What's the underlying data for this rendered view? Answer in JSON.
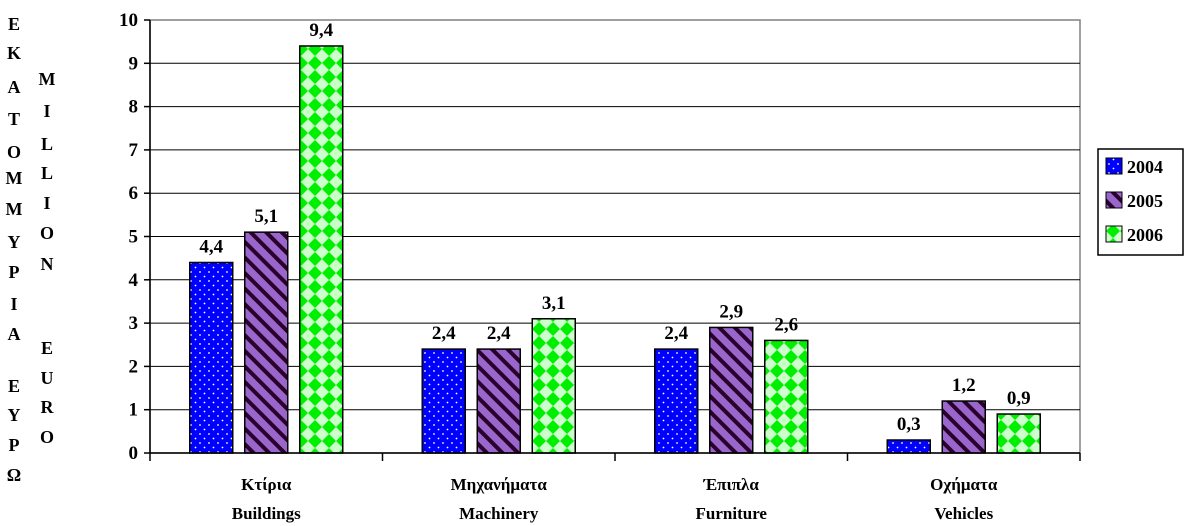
{
  "chart_data": {
    "type": "bar",
    "categories": [
      {
        "line1": "Κτίρια",
        "line2": "Buildings"
      },
      {
        "line1": "Μηχανήματα",
        "line2": "Machinery"
      },
      {
        "line1": "Έπιπλα",
        "line2": "Furniture"
      },
      {
        "line1": "Οχήματα",
        "line2": "Vehicles"
      }
    ],
    "series": [
      {
        "name": "2004",
        "values": [
          4.4,
          2.4,
          2.4,
          0.3
        ],
        "labels": [
          "4,4",
          "2,4",
          "2,4",
          "0,3"
        ],
        "color": "#0000ff",
        "pattern": "dots"
      },
      {
        "name": "2005",
        "values": [
          5.1,
          2.4,
          2.9,
          1.2
        ],
        "labels": [
          "5,1",
          "2,4",
          "2,9",
          "1,2"
        ],
        "color": "#9966cc",
        "pattern": "stripes"
      },
      {
        "name": "2006",
        "values": [
          9.4,
          3.1,
          2.6,
          0.9
        ],
        "labels": [
          "9,4",
          "3,1",
          "2,6",
          "0,9"
        ],
        "color": "#00ff00",
        "pattern": "diamonds"
      }
    ],
    "ylim": [
      0,
      10
    ],
    "yticks": [
      "0",
      "1",
      "2",
      "3",
      "4",
      "5",
      "6",
      "7",
      "8",
      "9",
      "10"
    ],
    "ylabel_gr": [
      "Ε",
      "Κ",
      "Α",
      "Τ",
      "Ο",
      "Μ",
      "Μ",
      "Υ",
      "Ρ",
      "Ι",
      "Α",
      "Ε",
      "Υ",
      "Ρ",
      "Ω"
    ],
    "ylabel_en": [
      "M",
      "I",
      "L",
      "L",
      "I",
      "O",
      "N",
      "E",
      "U",
      "R",
      "O"
    ],
    "legend_position": "right",
    "grid": true
  }
}
